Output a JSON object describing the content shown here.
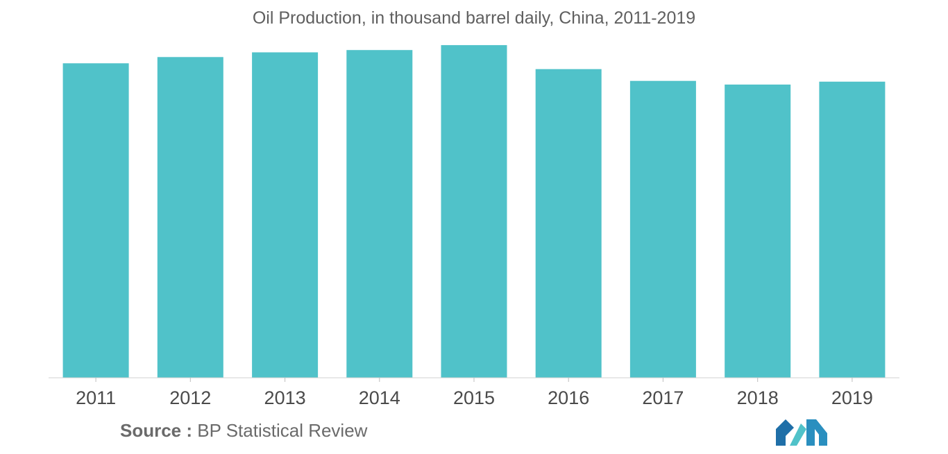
{
  "chart_data": {
    "type": "bar",
    "title": "Oil Production, in thousand barrel daily, China, 2011-2019",
    "xlabel": "",
    "ylabel": "",
    "categories": [
      "2011",
      "2012",
      "2013",
      "2014",
      "2015",
      "2016",
      "2017",
      "2018",
      "2019"
    ],
    "values": [
      4074,
      4155,
      4216,
      4246,
      4309,
      3999,
      3846,
      3798,
      3836
    ],
    "ylim": [
      0,
      4400
    ],
    "grid": false,
    "legend": "none",
    "bar_color": "#50c2c9"
  },
  "source": {
    "prefix": "Source :",
    "text": "BP Statistical Review"
  },
  "logo": {
    "name": "company-logo",
    "colors": [
      "#1f6fa8",
      "#50c2c9"
    ]
  }
}
